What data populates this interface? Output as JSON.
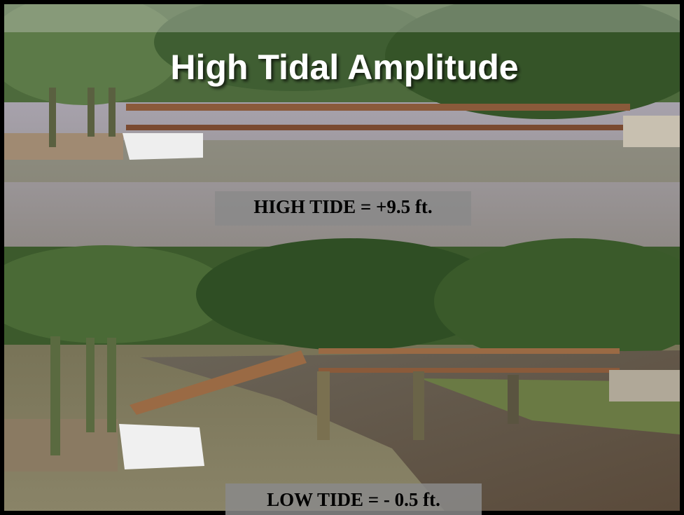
{
  "slide": {
    "title": "High Tidal Amplitude",
    "high_tide_label": "HIGH TIDE = +9.5 ft.",
    "low_tide_label": "LOW TIDE = - 0.5 ft."
  }
}
